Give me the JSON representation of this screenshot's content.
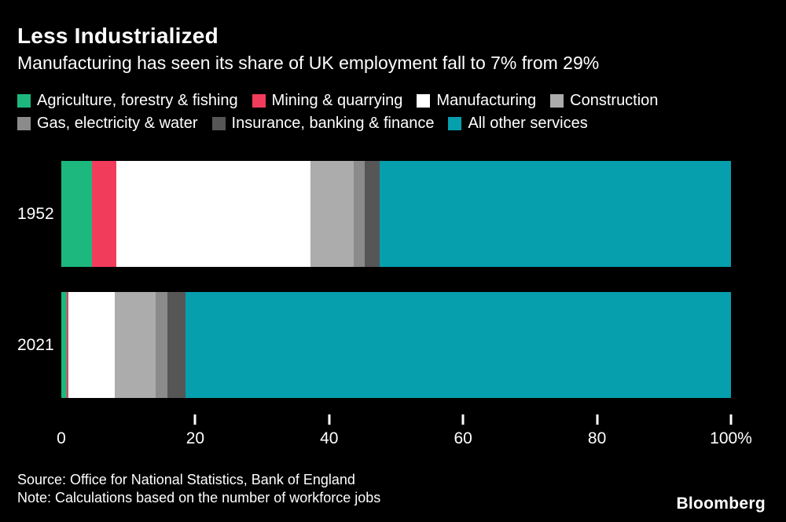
{
  "title": "Less Industrialized",
  "subtitle": "Manufacturing has seen its share of UK employment fall to 7% from 29%",
  "source": "Source: Office for National Statistics, Bank of England",
  "note": "Note: Calculations based on the number of workforce jobs",
  "branding": "Bloomberg",
  "colors": {
    "background": "#000000",
    "text": "#ffffff"
  },
  "chart_data": {
    "type": "bar",
    "orientation": "horizontal",
    "stacked": true,
    "unit": "percent of UK employment",
    "categories": [
      "1952",
      "2021"
    ],
    "series": [
      {
        "name": "Agriculture, forestry & fishing",
        "color": "#1db87e",
        "values": [
          4.6,
          0.8
        ]
      },
      {
        "name": "Mining & quarrying",
        "color": "#f13c5c",
        "values": [
          3.6,
          0.2
        ]
      },
      {
        "name": "Manufacturing",
        "color": "#ffffff",
        "values": [
          29,
          7
        ]
      },
      {
        "name": "Construction",
        "color": "#acacac",
        "values": [
          6.5,
          6.1
        ]
      },
      {
        "name": "Gas, electricity & water",
        "color": "#8b8b8b",
        "values": [
          1.6,
          1.8
        ]
      },
      {
        "name": "Insurance, banking & finance",
        "color": "#565656",
        "values": [
          2.2,
          2.6
        ]
      },
      {
        "name": "All other services",
        "color": "#069fae",
        "values": [
          52.5,
          81.5
        ]
      }
    ],
    "legend_rows": [
      [
        0,
        1,
        2,
        3
      ],
      [
        4,
        5,
        6
      ]
    ],
    "legend_position": "top",
    "grid": false,
    "xlim": [
      0,
      100
    ],
    "x_ticks": [
      {
        "label": "0",
        "pos": 0,
        "tick": false
      },
      {
        "label": "20",
        "pos": 20,
        "tick": true
      },
      {
        "label": "40",
        "pos": 40,
        "tick": true
      },
      {
        "label": "60",
        "pos": 60,
        "tick": true
      },
      {
        "label": "80",
        "pos": 80,
        "tick": true
      },
      {
        "label": "100%",
        "pos": 100,
        "tick": true
      }
    ]
  }
}
